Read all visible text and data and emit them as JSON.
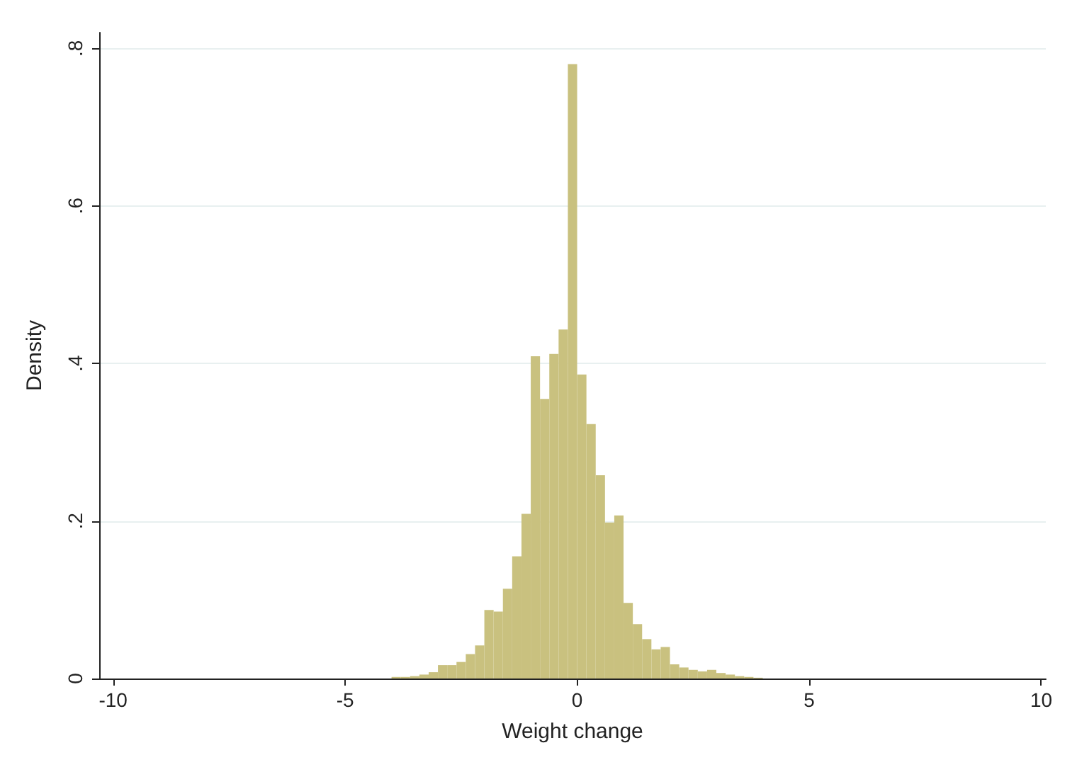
{
  "chart_data": {
    "type": "histogram",
    "xlabel": "Weight change",
    "ylabel": "Density",
    "color": "#c9c17f",
    "bins": [
      -10,
      -9.8,
      -9.6,
      -9.4,
      -9.2,
      -9,
      -8.8,
      -8.6,
      -8.4,
      -8.2,
      -8,
      -7.8,
      -7.6,
      -7.4,
      -7.2,
      -7,
      -6.8,
      -6.6,
      -6.4,
      -6.2,
      -6,
      -5.8,
      -5.6,
      -5.4,
      -5.2,
      -5,
      -4.8,
      -4.6,
      -4.4,
      -4.2,
      -4,
      -3.8,
      -3.6,
      -3.4,
      -3.2,
      -3,
      -2.8,
      -2.6,
      -2.4,
      -2.2,
      -2,
      -1.8,
      -1.6,
      -1.4,
      -1.2,
      -1,
      -0.8,
      -0.6,
      -0.4,
      -0.2,
      0,
      0.2,
      0.4,
      0.6,
      0.8,
      1,
      1.2,
      1.4,
      1.6,
      1.8,
      2,
      2.2,
      2.4,
      2.6,
      2.8,
      3,
      3.2,
      3.4,
      3.6,
      3.8,
      4,
      4.2,
      4.4,
      4.6,
      4.8,
      5,
      5.2,
      5.4,
      5.6,
      5.8,
      6,
      6.2,
      6.4,
      6.6,
      6.8,
      7,
      7.2,
      7.4,
      7.6,
      7.8,
      8,
      8.2,
      8.4,
      8.6,
      8.8,
      9,
      9.2,
      9.4,
      9.6,
      9.8,
      10
    ],
    "values": [
      0,
      0,
      0,
      0,
      0,
      0,
      0,
      0,
      0,
      0,
      0,
      0,
      0,
      0,
      0,
      0,
      0,
      0,
      0,
      0,
      0,
      0,
      0,
      0,
      0,
      0,
      0,
      0,
      0,
      0,
      0.002,
      0.002,
      0.003,
      0.005,
      0.008,
      0.017,
      0.017,
      0.021,
      0.031,
      0.042,
      0.087,
      0.085,
      0.114,
      0.155,
      0.209,
      0.409,
      0.355,
      0.412,
      0.443,
      0.78,
      0.386,
      0.323,
      0.258,
      0.198,
      0.207,
      0.096,
      0.069,
      0.05,
      0.037,
      0.04,
      0.018,
      0.014,
      0.011,
      0.009,
      0.011,
      0.007,
      0.005,
      0.003,
      0.002,
      0.001,
      0,
      0,
      0,
      0,
      0,
      0,
      0,
      0,
      0,
      0,
      0,
      0,
      0,
      0,
      0,
      0,
      0,
      0,
      0,
      0,
      0,
      0,
      0,
      0,
      0,
      0,
      0,
      0,
      0,
      0
    ],
    "xlim": [
      -10.3,
      10.1
    ],
    "xticks": [
      -10,
      -5,
      0,
      5,
      10
    ],
    "ylim": [
      0,
      0.82
    ],
    "yticks": [
      0,
      {
        "value": 0.2,
        "label": ".2"
      },
      {
        "value": 0.4,
        "label": ".4"
      },
      {
        "value": 0.6,
        "label": ".6"
      },
      {
        "value": 0.8,
        "label": ".8"
      }
    ],
    "grid": "y"
  }
}
